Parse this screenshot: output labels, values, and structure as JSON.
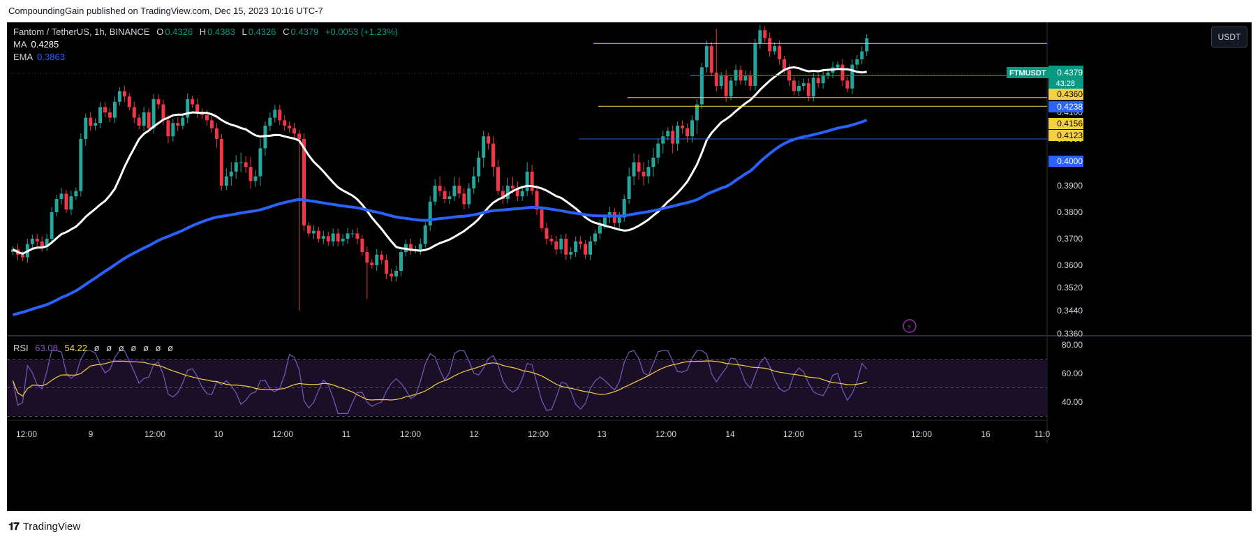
{
  "header": {
    "published": "CompoundingGain published on TradingView.com, Dec 15, 2023 10:16 UTC-7"
  },
  "footer": {
    "brand": "TradingView"
  },
  "legend": {
    "symbol": "Fantom / TetherUS, 1h, BINANCE",
    "o_label": "O",
    "o": "0.4326",
    "h_label": "H",
    "h": "0.4383",
    "l_label": "L",
    "l": "0.4326",
    "c_label": "C",
    "c": "0.4379",
    "change": "+0.0053 (+1.23%)",
    "ma_label": "MA",
    "ma": "0.4285",
    "ema_label": "EMA",
    "ema": "0.3863"
  },
  "currency_button": "USDT",
  "rsi_legend": {
    "label": "RSI",
    "v1": "63.08",
    "v2": "54.22",
    "extras": [
      "ø",
      "ø",
      "ø",
      "ø",
      "ø",
      "ø",
      "ø"
    ]
  },
  "colors": {
    "up": "#26a69a",
    "down": "#f23645",
    "ma": "#ffffff",
    "ema": "#2962ff",
    "rsi": "#7e57c2",
    "rsi_ma": "#f5d142",
    "hline_yellow": "#f5d142",
    "hline_blue": "#2962ff"
  },
  "chart_data": {
    "type": "candlestick",
    "symbol": "FTMUSDT",
    "timeframe": "1h",
    "y_ticks": [
      "0.4100",
      "0.4000",
      "0.3900",
      "0.3800",
      "0.3700",
      "0.3600",
      "0.3520",
      "0.3440",
      "0.3360"
    ],
    "y_range": [
      0.336,
      0.45
    ],
    "x_ticks": [
      "12:00",
      "9",
      "12:00",
      "10",
      "12:00",
      "11",
      "12:00",
      "12",
      "12:00",
      "13",
      "12:00",
      "14",
      "12:00",
      "15",
      "12:00",
      "16",
      "11:0"
    ],
    "price_labels": [
      {
        "label": "FTMUSDT",
        "value": "0.4379",
        "countdown": "43:28",
        "color": "#089981"
      },
      {
        "value": "0.4360",
        "color": "#f5d142"
      },
      {
        "value": "0.4238",
        "color": "#2962ff"
      },
      {
        "value": "0.4156",
        "color": "#f5d142"
      },
      {
        "value": "0.4123",
        "color": "#f5d142"
      },
      {
        "value": "0.4000",
        "color": "#2962ff"
      }
    ],
    "horizontal_lines": [
      {
        "value": 0.436,
        "color": "yellow",
        "from_candle": 120
      },
      {
        "value": 0.4238,
        "color": "blue",
        "from_candle": 140
      },
      {
        "value": 0.4156,
        "color": "yellow",
        "from_candle": 127
      },
      {
        "value": 0.4123,
        "color": "yellow",
        "from_candle": 121
      },
      {
        "value": 0.4,
        "color": "blue",
        "from_candle": 117
      }
    ],
    "closes": [
      0.366,
      0.364,
      0.363,
      0.368,
      0.37,
      0.369,
      0.367,
      0.37,
      0.38,
      0.385,
      0.387,
      0.381,
      0.386,
      0.388,
      0.4,
      0.408,
      0.405,
      0.406,
      0.412,
      0.41,
      0.408,
      0.414,
      0.418,
      0.416,
      0.412,
      0.408,
      0.405,
      0.41,
      0.404,
      0.415,
      0.413,
      0.407,
      0.401,
      0.406,
      0.405,
      0.408,
      0.415,
      0.413,
      0.41,
      0.409,
      0.407,
      0.404,
      0.4,
      0.39,
      0.392,
      0.393,
      0.395,
      0.395,
      0.394,
      0.391,
      0.392,
      0.398,
      0.405,
      0.408,
      0.411,
      0.407,
      0.405,
      0.404,
      0.402,
      0.4,
      0.375,
      0.372,
      0.373,
      0.37,
      0.371,
      0.369,
      0.372,
      0.369,
      0.37,
      0.372,
      0.372,
      0.37,
      0.365,
      0.361,
      0.36,
      0.364,
      0.362,
      0.357,
      0.356,
      0.358,
      0.365,
      0.368,
      0.366,
      0.366,
      0.368,
      0.375,
      0.384,
      0.39,
      0.388,
      0.385,
      0.386,
      0.39,
      0.387,
      0.383,
      0.389,
      0.392,
      0.396,
      0.401,
      0.399,
      0.394,
      0.388,
      0.385,
      0.39,
      0.389,
      0.386,
      0.388,
      0.393,
      0.388,
      0.381,
      0.374,
      0.37,
      0.369,
      0.366,
      0.37,
      0.364,
      0.365,
      0.369,
      0.368,
      0.364,
      0.369,
      0.372,
      0.375,
      0.378,
      0.38,
      0.376,
      0.378,
      0.385,
      0.392,
      0.395,
      0.393,
      0.392,
      0.394,
      0.396,
      0.399,
      0.401,
      0.403,
      0.399,
      0.405,
      0.404,
      0.401,
      0.407,
      0.413,
      0.427,
      0.435,
      0.425,
      0.42,
      0.424,
      0.416,
      0.422,
      0.426,
      0.422,
      0.424,
      0.42,
      0.436,
      0.441,
      0.438,
      0.433,
      0.435,
      0.43,
      0.426,
      0.422,
      0.418,
      0.42,
      0.421,
      0.416,
      0.423,
      0.421,
      0.424,
      0.425,
      0.427,
      0.428,
      0.422,
      0.419,
      0.428,
      0.43,
      0.433,
      0.4379
    ],
    "ma_last": 0.4285,
    "ema_last": 0.3863,
    "rsi": {
      "levels": [
        70,
        50,
        30
      ],
      "y_ticks": [
        "80.00",
        "60.00",
        "40.00"
      ],
      "last": 63.08,
      "ma_last": 54.22
    }
  }
}
